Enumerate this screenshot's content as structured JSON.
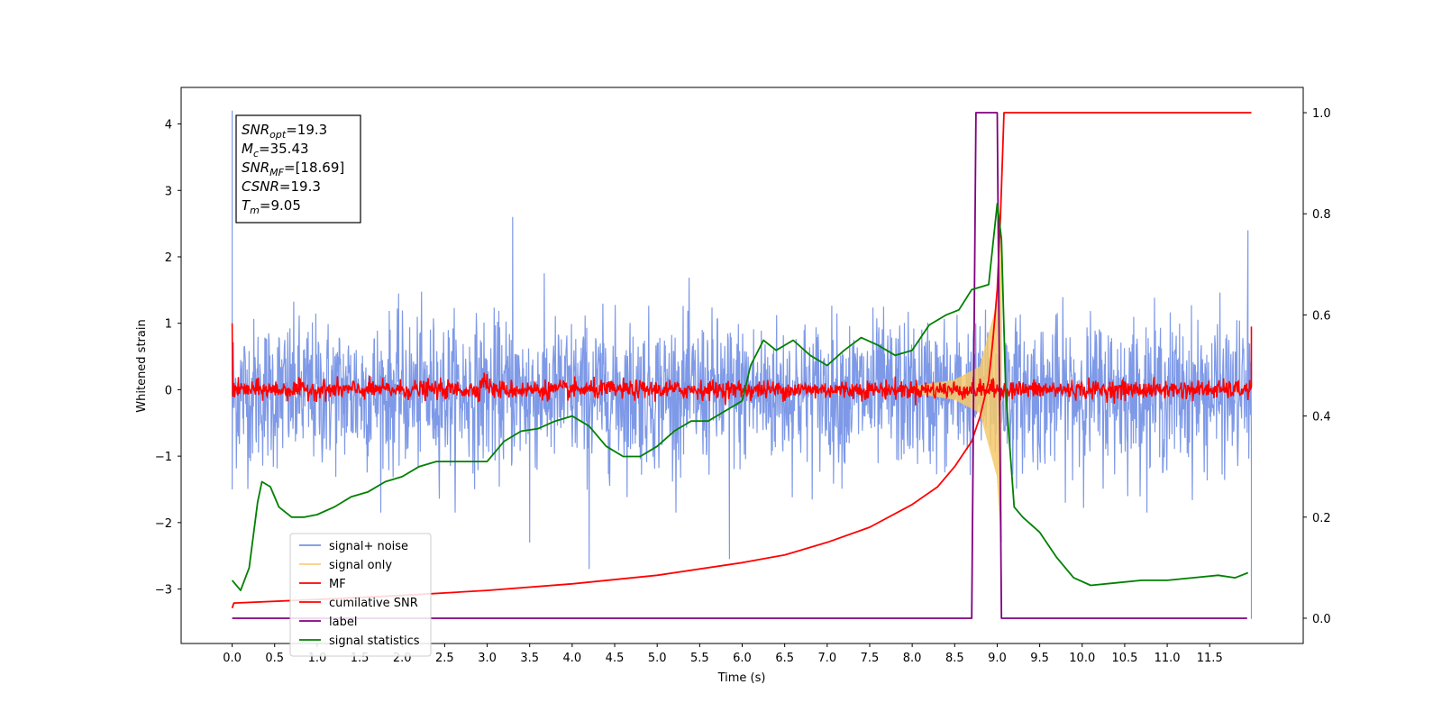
{
  "chart_data": {
    "type": "line",
    "xlabel": "Time (s)",
    "ylabel": "Whitened strain",
    "xlim": [
      -0.6,
      12.6
    ],
    "ylim_left": [
      -3.82,
      4.55
    ],
    "ylim_right": [
      -0.05,
      1.05
    ],
    "x_ticks": [
      0.0,
      0.5,
      1.0,
      1.5,
      2.0,
      2.5,
      3.0,
      3.5,
      4.0,
      4.5,
      5.0,
      5.5,
      6.0,
      6.5,
      7.0,
      7.5,
      8.0,
      8.5,
      9.0,
      9.5,
      10.0,
      10.5,
      11.0,
      11.5
    ],
    "x_tick_labels": [
      "0.0",
      "0.5",
      "1.0",
      "1.5",
      "2.0",
      "2.5",
      "3.0",
      "3.5",
      "4.0",
      "4.5",
      "5.0",
      "5.5",
      "6.0",
      "6.5",
      "7.0",
      "7.5",
      "8.0",
      "8.5",
      "9.0",
      "9.5",
      "10.0",
      "10.5",
      "11.0",
      "11.5"
    ],
    "y_ticks_left": [
      -3,
      -2,
      -1,
      0,
      1,
      2,
      3,
      4
    ],
    "y_tick_labels_left": [
      "−3",
      "−2",
      "−1",
      "0",
      "1",
      "2",
      "3",
      "4"
    ],
    "y_ticks_right": [
      0.0,
      0.2,
      0.4,
      0.6,
      0.8,
      1.0
    ],
    "y_tick_labels_right": [
      "0.0",
      "0.2",
      "0.4",
      "0.6",
      "0.8",
      "1.0"
    ],
    "grid": false,
    "legend_position": "bottom-left",
    "series": [
      {
        "name": "signal+ noise",
        "color": "#7793e6",
        "axis": "left",
        "style": "noise",
        "x_range": [
          0.0,
          11.99
        ],
        "baseline": -0.05,
        "typical_min": -1.6,
        "typical_max": 1.5,
        "extremes": [
          [
            0.0,
            4.2
          ],
          [
            0.0,
            -1.5
          ],
          [
            3.3,
            2.6
          ],
          [
            3.5,
            -2.3
          ],
          [
            4.2,
            -2.7
          ],
          [
            5.85,
            -2.55
          ],
          [
            11.95,
            2.4
          ],
          [
            11.99,
            -3.45
          ]
        ]
      },
      {
        "name": "signal only",
        "color": "#f5c96a",
        "axis": "left",
        "style": "chirp",
        "x_range": [
          8.0,
          9.05
        ],
        "amplitude_at": [
          [
            8.0,
            0.05
          ],
          [
            8.5,
            0.15
          ],
          [
            8.8,
            0.35
          ],
          [
            9.0,
            1.3
          ],
          [
            9.05,
            2.3
          ]
        ]
      },
      {
        "name": "MF",
        "color": "#ff0000",
        "axis": "left",
        "style": "mf",
        "x_range": [
          0.0,
          11.99
        ],
        "baseline": 0.0,
        "noise_amplitude": 0.07,
        "points": [
          [
            0.0,
            1.0
          ],
          [
            0.02,
            0.2
          ],
          [
            2.95,
            0.2
          ],
          [
            3.05,
            0.1
          ],
          [
            11.98,
            0.05
          ],
          [
            11.99,
            0.95
          ]
        ]
      },
      {
        "name": "cumilative SNR",
        "color": "#ff0000",
        "axis": "right",
        "x": [
          0.0,
          0.02,
          1.0,
          2.0,
          3.0,
          4.0,
          5.0,
          6.0,
          6.5,
          7.0,
          7.5,
          8.0,
          8.3,
          8.5,
          8.7,
          8.8,
          8.9,
          8.95,
          9.0,
          9.04,
          9.08,
          9.5,
          11.99
        ],
        "y": [
          0.02,
          0.03,
          0.037,
          0.045,
          0.055,
          0.068,
          0.085,
          0.11,
          0.125,
          0.15,
          0.18,
          0.225,
          0.26,
          0.3,
          0.35,
          0.4,
          0.47,
          0.55,
          0.65,
          0.8,
          1.0,
          1.0,
          1.0
        ]
      },
      {
        "name": "label",
        "color": "#800080",
        "axis": "right",
        "x": [
          0.0,
          8.7,
          8.75,
          9.0,
          9.05,
          11.94
        ],
        "y": [
          0.0,
          0.0,
          1.0,
          1.0,
          0.0,
          0.0
        ]
      },
      {
        "name": "signal statistics",
        "color": "#008000",
        "axis": "right",
        "x": [
          0.0,
          0.1,
          0.2,
          0.3,
          0.35,
          0.45,
          0.55,
          0.7,
          0.85,
          1.0,
          1.2,
          1.4,
          1.6,
          1.8,
          2.0,
          2.2,
          2.4,
          2.6,
          2.8,
          3.0,
          3.2,
          3.4,
          3.6,
          3.8,
          4.0,
          4.2,
          4.4,
          4.6,
          4.8,
          5.0,
          5.2,
          5.4,
          5.6,
          5.8,
          6.0,
          6.1,
          6.25,
          6.4,
          6.6,
          6.8,
          7.0,
          7.2,
          7.4,
          7.6,
          7.8,
          8.0,
          8.2,
          8.4,
          8.55,
          8.7,
          8.9,
          9.0,
          9.05,
          9.1,
          9.2,
          9.3,
          9.5,
          9.7,
          9.9,
          10.1,
          10.4,
          10.7,
          11.0,
          11.3,
          11.6,
          11.8,
          11.95
        ],
        "y": [
          0.075,
          0.055,
          0.1,
          0.23,
          0.27,
          0.26,
          0.22,
          0.2,
          0.2,
          0.205,
          0.22,
          0.24,
          0.25,
          0.27,
          0.28,
          0.3,
          0.31,
          0.31,
          0.31,
          0.31,
          0.35,
          0.37,
          0.375,
          0.39,
          0.4,
          0.38,
          0.34,
          0.32,
          0.32,
          0.34,
          0.37,
          0.39,
          0.39,
          0.41,
          0.43,
          0.5,
          0.55,
          0.53,
          0.55,
          0.52,
          0.5,
          0.53,
          0.555,
          0.54,
          0.52,
          0.53,
          0.58,
          0.6,
          0.61,
          0.65,
          0.66,
          0.82,
          0.75,
          0.45,
          0.22,
          0.2,
          0.17,
          0.12,
          0.08,
          0.065,
          0.07,
          0.075,
          0.075,
          0.08,
          0.085,
          0.08,
          0.09
        ]
      }
    ],
    "annotation": [
      {
        "symbol": "SNR",
        "sub": "opt",
        "value": "=19.3"
      },
      {
        "symbol": "M",
        "sub": "c",
        "value": "=35.43"
      },
      {
        "symbol": "SNR",
        "sub": "MF",
        "value": "=[18.69]"
      },
      {
        "symbol": "CSNR",
        "sub": "",
        "value": "=19.3"
      },
      {
        "symbol": "T",
        "sub": "m",
        "value": "=9.05"
      }
    ]
  }
}
